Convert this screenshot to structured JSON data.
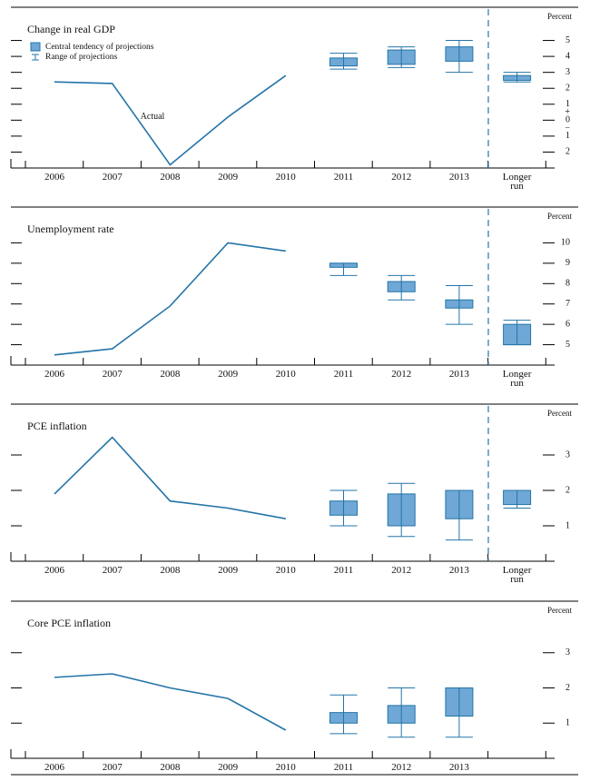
{
  "chart_data": [
    {
      "type": "projection",
      "title": "Change in real GDP",
      "y_unit": "Percent",
      "categories": [
        "2006",
        "2007",
        "2008",
        "2009",
        "2010",
        "2011",
        "2012",
        "2013",
        "Longer run"
      ],
      "series": [
        {
          "name": "Actual",
          "color": "#2474a8",
          "values": [
            2.4,
            2.3,
            -2.8,
            0.2,
            2.8,
            null,
            null,
            null,
            null
          ]
        }
      ],
      "central_tendency": {
        "name": "Central tendency of projections",
        "color": "#6fa8d6",
        "low": [
          null,
          null,
          null,
          null,
          null,
          3.4,
          3.5,
          3.7,
          2.5
        ],
        "high": [
          null,
          null,
          null,
          null,
          null,
          3.9,
          4.4,
          4.6,
          2.8
        ]
      },
      "range": {
        "name": "Range of projections",
        "color": "#2474a8",
        "low": [
          null,
          null,
          null,
          null,
          null,
          3.2,
          3.3,
          3.0,
          2.4
        ],
        "high": [
          null,
          null,
          null,
          null,
          null,
          4.2,
          4.6,
          5.0,
          3.0
        ]
      },
      "ylim": [
        -3,
        6
      ],
      "yticks": [
        5,
        4,
        3,
        2,
        1,
        0,
        {
          "value": -1,
          "label": "1"
        },
        {
          "value": -2,
          "label": "2"
        }
      ],
      "sign_labels": [
        "+",
        "−"
      ],
      "longer_run_divider": true
    },
    {
      "type": "projection",
      "title": "Unemployment rate",
      "y_unit": "Percent",
      "categories": [
        "2006",
        "2007",
        "2008",
        "2009",
        "2010",
        "2011",
        "2012",
        "2013",
        "Longer run"
      ],
      "series": [
        {
          "color": "#2474a8",
          "values": [
            4.5,
            4.8,
            6.9,
            10.0,
            9.6,
            null,
            null,
            null,
            null
          ]
        }
      ],
      "central_tendency": {
        "color": "#6fa8d6",
        "low": [
          null,
          null,
          null,
          null,
          null,
          8.8,
          7.6,
          6.8,
          5.0
        ],
        "high": [
          null,
          null,
          null,
          null,
          null,
          9.0,
          8.1,
          7.2,
          6.0
        ]
      },
      "range": {
        "color": "#2474a8",
        "low": [
          null,
          null,
          null,
          null,
          null,
          8.4,
          7.2,
          6.0,
          5.0
        ],
        "high": [
          null,
          null,
          null,
          null,
          null,
          9.0,
          8.4,
          7.9,
          6.2
        ]
      },
      "ylim": [
        4,
        11
      ],
      "yticks": [
        10,
        9,
        8,
        7,
        6,
        5
      ],
      "longer_run_divider": true
    },
    {
      "type": "projection",
      "title": "PCE inflation",
      "y_unit": "Percent",
      "categories": [
        "2006",
        "2007",
        "2008",
        "2009",
        "2010",
        "2011",
        "2012",
        "2013",
        "Longer run"
      ],
      "series": [
        {
          "color": "#2474a8",
          "values": [
            1.9,
            3.5,
            1.7,
            1.5,
            1.2,
            null,
            null,
            null,
            null
          ]
        }
      ],
      "central_tendency": {
        "color": "#6fa8d6",
        "low": [
          null,
          null,
          null,
          null,
          null,
          1.3,
          1.0,
          1.2,
          1.6
        ],
        "high": [
          null,
          null,
          null,
          null,
          null,
          1.7,
          1.9,
          2.0,
          2.0
        ]
      },
      "range": {
        "color": "#2474a8",
        "low": [
          null,
          null,
          null,
          null,
          null,
          1.0,
          0.7,
          0.6,
          1.5
        ],
        "high": [
          null,
          null,
          null,
          null,
          null,
          2.0,
          2.2,
          2.0,
          2.0
        ]
      },
      "ylim": [
        0,
        4
      ],
      "yticks": [
        3,
        2,
        1
      ],
      "longer_run_divider": true
    },
    {
      "type": "projection",
      "title": "Core PCE inflation",
      "y_unit": "Percent",
      "categories": [
        "2006",
        "2007",
        "2008",
        "2009",
        "2010",
        "2011",
        "2012",
        "2013",
        null
      ],
      "series": [
        {
          "color": "#2474a8",
          "values": [
            2.3,
            2.4,
            2.0,
            1.7,
            0.8,
            null,
            null,
            null,
            null
          ]
        }
      ],
      "central_tendency": {
        "color": "#6fa8d6",
        "low": [
          null,
          null,
          null,
          null,
          null,
          1.0,
          1.0,
          1.2,
          null
        ],
        "high": [
          null,
          null,
          null,
          null,
          null,
          1.3,
          1.5,
          2.0,
          null
        ]
      },
      "range": {
        "color": "#2474a8",
        "low": [
          null,
          null,
          null,
          null,
          null,
          0.7,
          0.6,
          0.6,
          null
        ],
        "high": [
          null,
          null,
          null,
          null,
          null,
          1.8,
          2.0,
          2.0,
          null
        ]
      },
      "ylim": [
        0,
        4
      ],
      "yticks": [
        3,
        2,
        1
      ],
      "longer_run_divider": false
    }
  ]
}
